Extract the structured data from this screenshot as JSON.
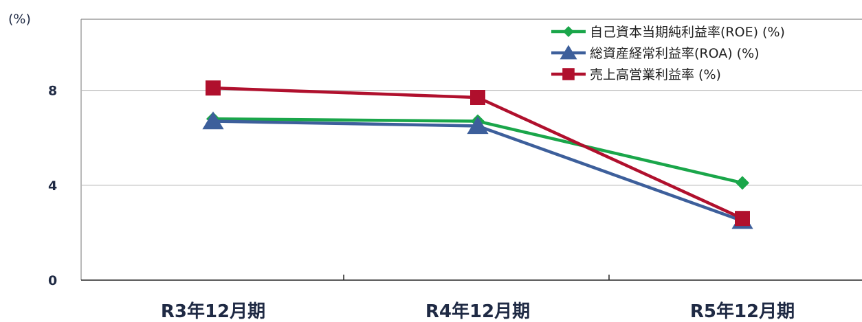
{
  "chart_data": {
    "type": "line",
    "unit_label": "(%)",
    "categories": [
      "R3年12月期",
      "R4年12月期",
      "R5年12月期"
    ],
    "ylim": [
      0,
      11
    ],
    "yticks": [
      0,
      4,
      8
    ],
    "grid": true,
    "legend_position": "top-right",
    "series": [
      {
        "name": "自己資本当期純利益率(ROE) (%)",
        "values": [
          6.8,
          6.7,
          4.1
        ],
        "color": "#1aa64a",
        "marker": "diamond"
      },
      {
        "name": "総資産経常利益率(ROA) (%)",
        "values": [
          6.7,
          6.5,
          2.5
        ],
        "color": "#3d5f9b",
        "marker": "triangle"
      },
      {
        "name": "売上高営業利益率 (%)",
        "values": [
          8.1,
          7.7,
          2.6
        ],
        "color": "#b0102d",
        "marker": "square"
      }
    ]
  }
}
